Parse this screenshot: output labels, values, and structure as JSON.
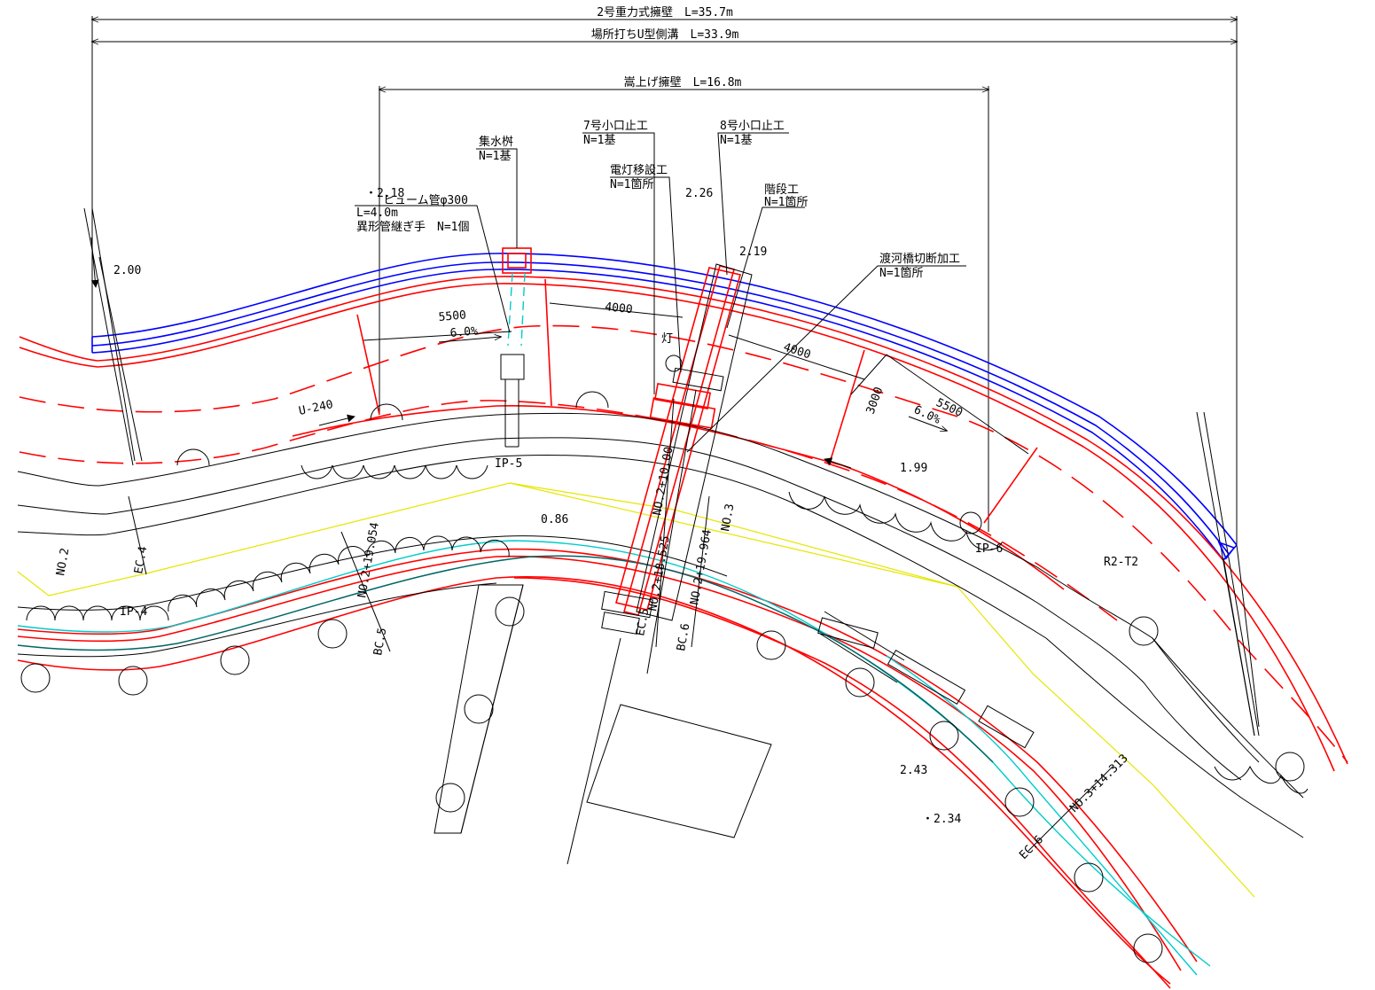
{
  "colors": {
    "structure": "#ff0000",
    "channel": "#0000ff",
    "edge": "#00cccc",
    "centerline": "#e6e600",
    "line": "#000000",
    "background": "#ffffff"
  },
  "dimensions": {
    "gravity_wall": "2号重力式擁壁　L=35.7m",
    "u_gutter": "場所打ちU型側溝　L=33.9m",
    "raised_wall": "嵩上げ擁壁　L=16.8m",
    "d5500_left": "5500",
    "d4000_left": "4000",
    "d4000_right": "4000",
    "d3000": "3000",
    "d5500_right": "5500"
  },
  "callouts": {
    "catch_basin": {
      "title": "集水桝",
      "qty": "N=1基"
    },
    "hume_pipe": {
      "title": "ヒューム管φ300",
      "length": "L=4.0m",
      "joint": "異形管継ぎ手　N=1個"
    },
    "stop_7": {
      "title": "7号小口止工",
      "qty": "N=1基"
    },
    "stop_8": {
      "title": "8号小口止工",
      "qty": "N=1基"
    },
    "light_relocation": {
      "title": "電灯移設工",
      "qty": "N=1箇所"
    },
    "stairs": {
      "title": "階段工",
      "qty": "N=1箇所"
    },
    "bridge_cutting": {
      "title": "渡河橋切断加工",
      "qty": "N=1箇所"
    }
  },
  "elevations": {
    "e200": "2.00",
    "e218": "・2.18",
    "e226": "2.26",
    "e219": "2.19",
    "e199": "1.99",
    "e086": "0.86",
    "e243": "2.43",
    "e234": "・2.34"
  },
  "slopes": {
    "left": "6.0%",
    "right": "6.0%"
  },
  "labels": {
    "u240": "U-240",
    "light": "灯",
    "ip5": "IP-5",
    "ip4": "IP-4",
    "ip6": "IP-6",
    "r2t2": "R2-T2"
  },
  "stations": {
    "no2": "NO.2",
    "ec4": "EC.4",
    "no2_19054": "NO.2+19.054",
    "bc5": "BC.5",
    "no2_10": "NO.2+10.00",
    "no2_18525": "NO.2+18.525",
    "ec5": "EC.5",
    "no3": "NO.3",
    "no2_19964": "NO.2+19.964",
    "bc6": "BC.6",
    "no3_14313": "NO.3+14.313",
    "ec6": "EC.6"
  }
}
